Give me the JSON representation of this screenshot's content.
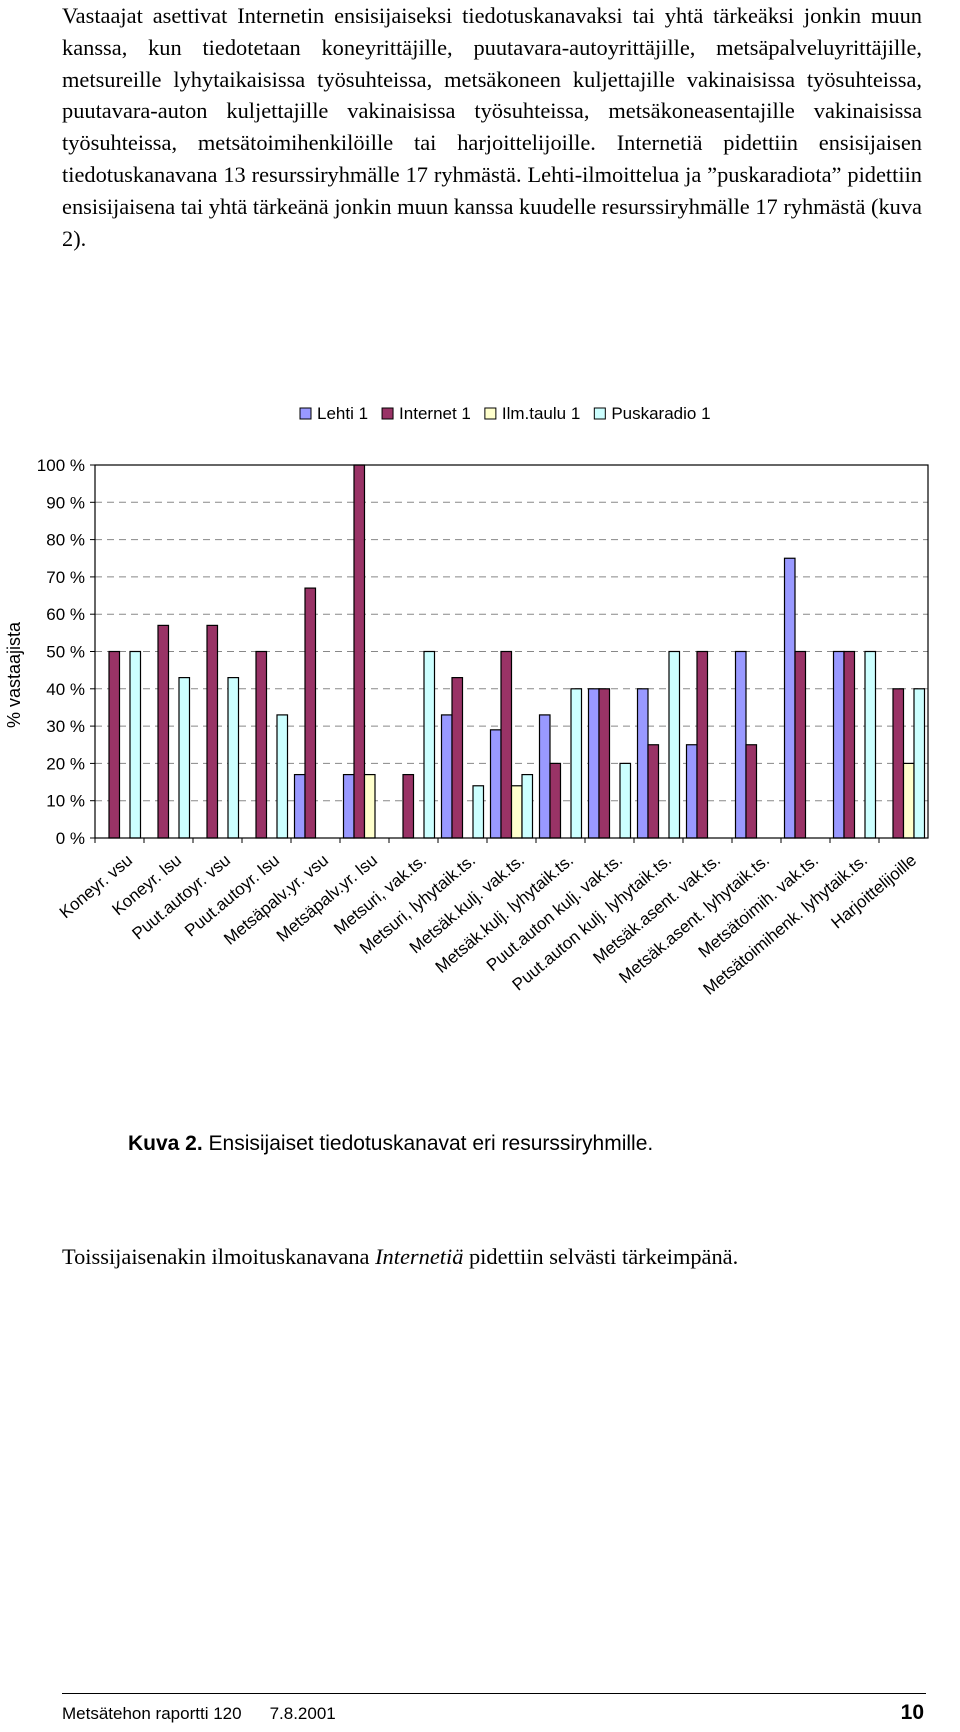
{
  "document": {
    "paragraph1": "Vastaajat asettivat Internetin ensisijaiseksi tiedotuskanavaksi tai yhtä tärkeäksi jonkin muun kanssa, kun tiedotetaan koneyrittäjille, puutavara-autoyrittäjille, metsäpalveluyrittäjille, metsureille lyhytaikaisissa työsuhteissa, metsäkoneen kuljettajille vakinaisissa työsuhteissa, puutavara-auton kuljettajille vakinaisissa työsuhteissa, metsäkoneasentajille vakinaisissa työsuhteissa, metsätoimihenkilöille tai harjoittelijoille. Internetiä pidettiin ensisijaisen tiedotuskanavana 13 resurssiryhmälle 17 ryhmästä. Lehti-ilmoittelua ja ”puskaradiota” pidettiin ensisijaisena tai yhtä tärkeänä jonkin muun kanssa kuudelle resurssiryhmälle 17 ryhmästä (kuva 2).",
    "caption_label": "Kuva 2.",
    "caption_text": " Ensisijaiset tiedotuskanavat eri resurssiryhmille.",
    "paragraph2_before": "Toissijaisenakin ilmoituskanavana ",
    "paragraph2_italic": "Internetiä",
    "paragraph2_after": " pidettiin selvästi tärkeimpänä.",
    "footer_title": "Metsätehon raportti  120",
    "footer_date": "7.8.2001",
    "page_number": "10"
  },
  "chart_data": {
    "type": "bar",
    "ylabel": "% vastaajista",
    "ylim": [
      0,
      100
    ],
    "yticks": [
      "0 %",
      "10 %",
      "20 %",
      "30 %",
      "40 %",
      "50 %",
      "60 %",
      "70 %",
      "80 %",
      "90 %",
      "100 %"
    ],
    "grid": "dashed horizontal",
    "legend_position": "top",
    "categories": [
      "Koneyr. vsu",
      "Koneyr. lsu",
      "Puut.autoyr. vsu",
      "Puut.autoyr. lsu",
      "Metsäpalv.yr. vsu",
      "Metsäpalv.yr. lsu",
      "Metsuri, vak.ts.",
      "Metsuri, lyhytaik.ts.",
      "Metsäk.kulj. vak.ts.",
      "Metsäk.kulj. lyhytaik.ts.",
      "Puut.auton kulj. vak.ts.",
      "Puut.auton kulj. lyhytaik.ts.",
      "Metsäk.asent. vak.ts.",
      "Metsäk.asent. lyhytaik.ts.",
      "Metsätoimih. vak.ts.",
      "Metsätoimihenk. lyhytaik.ts.",
      "Harjoittelijoille"
    ],
    "series": [
      {
        "name": "Lehti 1",
        "color": "#9999ff",
        "values": [
          0,
          0,
          0,
          0,
          17,
          17,
          0,
          33,
          29,
          33,
          40,
          40,
          25,
          50,
          75,
          50,
          0
        ]
      },
      {
        "name": "Internet 1",
        "color": "#993366",
        "values": [
          50,
          57,
          57,
          50,
          67,
          100,
          17,
          43,
          50,
          20,
          40,
          25,
          50,
          25,
          50,
          50,
          40
        ]
      },
      {
        "name": "Ilm.taulu 1",
        "color": "#ffffcc",
        "values": [
          0,
          0,
          0,
          0,
          0,
          17,
          0,
          0,
          14,
          0,
          0,
          0,
          0,
          0,
          0,
          0,
          20
        ]
      },
      {
        "name": "Puskaradio 1",
        "color": "#ccffff",
        "values": [
          50,
          43,
          43,
          33,
          0,
          0,
          50,
          14,
          17,
          40,
          20,
          50,
          0,
          0,
          0,
          50,
          40
        ]
      }
    ]
  }
}
